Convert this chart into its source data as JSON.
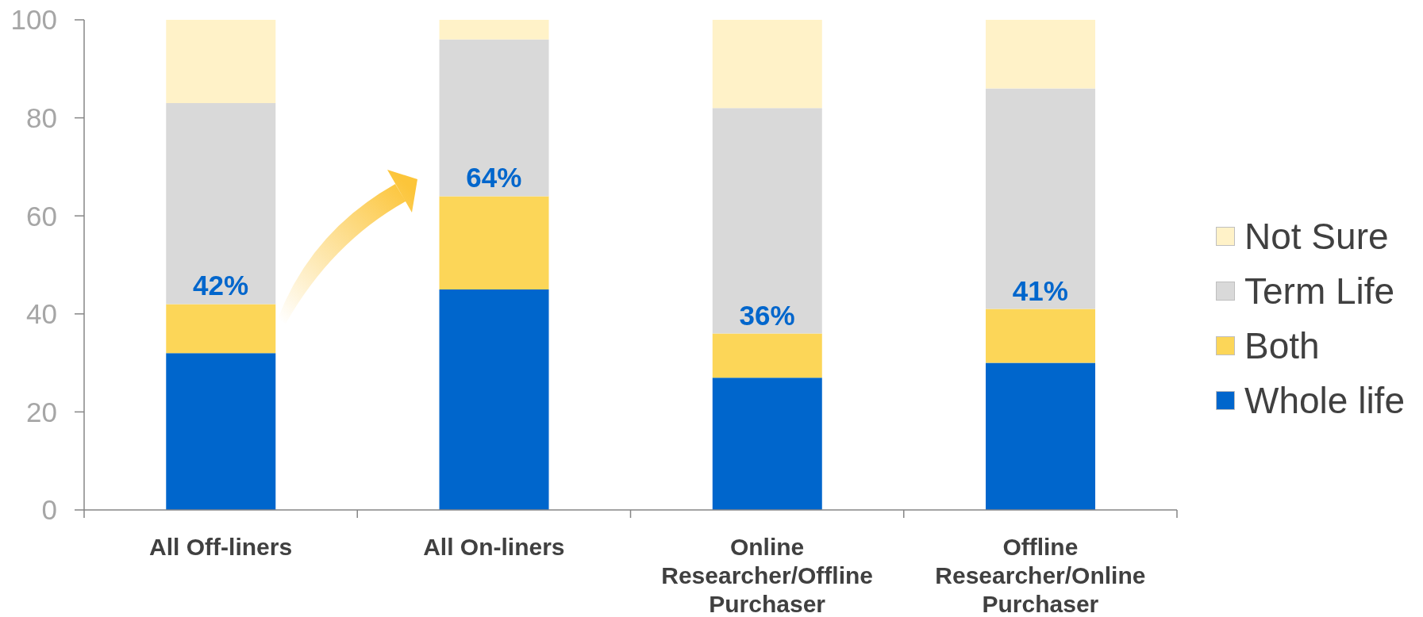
{
  "chart_data": {
    "type": "bar",
    "stacked": true,
    "categories": [
      "All Off-liners",
      "All On-liners",
      "Online Researcher/Offline Purchaser",
      "Offline Researcher/Online Purchaser"
    ],
    "series": [
      {
        "name": "Whole life",
        "color": "#0066cc",
        "values": [
          32,
          45,
          27,
          30
        ]
      },
      {
        "name": "Both",
        "color": "#fcd658",
        "values": [
          10,
          19,
          9,
          11
        ]
      },
      {
        "name": "Term Life",
        "color": "#d9d9d9",
        "values": [
          41,
          32,
          46,
          45
        ]
      },
      {
        "name": "Not Sure",
        "color": "#fff2c8",
        "values": [
          17,
          4,
          18,
          14
        ]
      }
    ],
    "ylim": [
      0,
      100
    ],
    "yticks": [
      0,
      20,
      40,
      60,
      80,
      100
    ],
    "legend": "right",
    "annotations": [
      {
        "text": "42%",
        "x": "All Off-liners",
        "y": 42
      },
      {
        "text": "64%",
        "x": "All On-liners",
        "y": 64
      },
      {
        "text": "36%",
        "x": "Online Researcher/Offline Purchaser",
        "y": 36
      },
      {
        "text": "41%",
        "x": "Offline Researcher/Online Purchaser",
        "y": 41
      }
    ]
  }
}
